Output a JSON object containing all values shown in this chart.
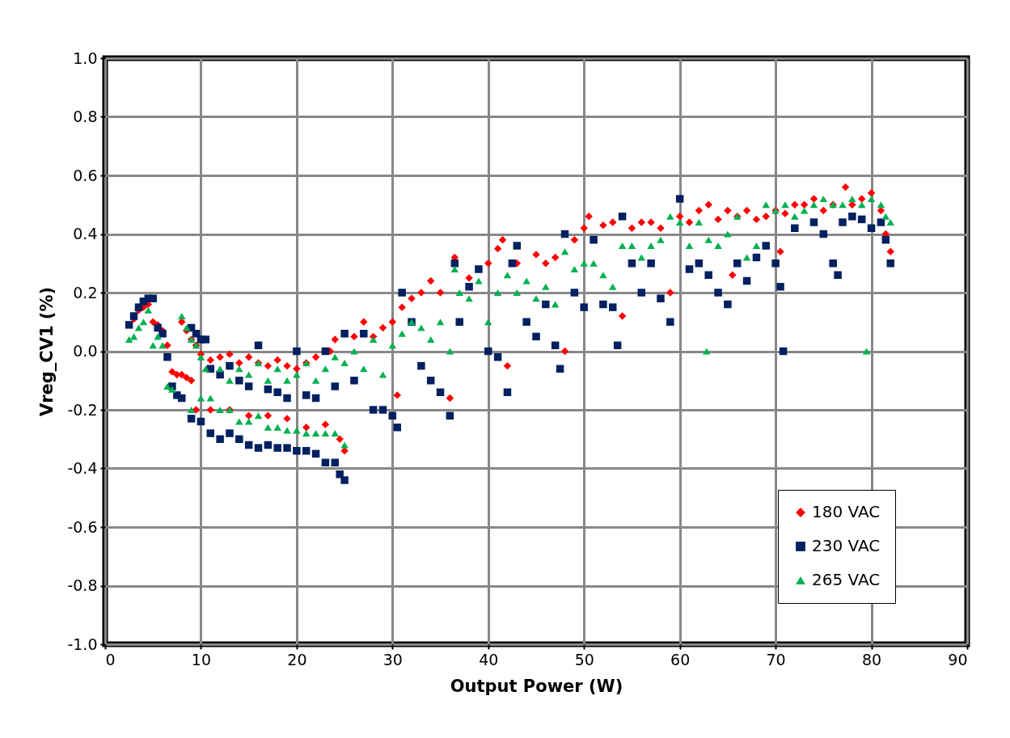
{
  "chart_data": {
    "type": "scatter",
    "xlabel": "Output Power (W)",
    "ylabel": "Vreg_CV1 (%)",
    "xlim": [
      0,
      90
    ],
    "xticks": [
      0,
      10,
      20,
      30,
      40,
      50,
      60,
      70,
      80,
      90
    ],
    "ylim": [
      -1,
      1
    ],
    "yticks": [
      {
        "value": -1,
        "label": "-1.0"
      },
      -0.8,
      -0.6,
      -0.4,
      -0.2,
      {
        "value": 0,
        "label": "0.0"
      },
      0.2,
      0.4,
      0.6,
      0.8,
      {
        "value": 1,
        "label": "1.0"
      }
    ],
    "grid": true,
    "legend": "bottom right",
    "series": [
      {
        "name": "180 VAC",
        "color": "#ff0000",
        "marker": "diamond",
        "x": [
          3,
          3.5,
          4,
          4.5,
          5,
          5.5,
          6,
          6.5,
          7,
          7.5,
          8,
          8.5,
          9,
          8,
          8.5,
          9,
          9.5,
          10,
          11,
          12,
          13,
          14,
          15,
          16,
          17,
          18,
          19,
          20,
          21,
          22,
          23.5,
          24,
          9.5,
          11,
          13,
          15,
          17,
          19,
          21,
          23,
          24.5,
          25,
          26,
          27,
          28,
          29,
          30,
          30.5,
          31,
          32,
          33,
          34,
          35,
          36,
          36.5,
          38,
          40,
          41,
          41.5,
          42,
          43,
          45,
          46,
          47,
          48,
          49,
          50,
          50.5,
          52,
          53,
          54,
          55,
          56,
          57,
          58,
          59,
          60,
          61,
          62,
          63,
          64,
          65,
          65.5,
          66,
          67,
          68,
          69,
          70,
          70.5,
          71,
          72,
          73,
          74,
          75,
          76,
          77.3,
          78,
          79,
          80,
          81,
          81.5,
          82
        ],
        "values": [
          0.11,
          0.14,
          0.15,
          0.16,
          0.1,
          0.09,
          0.07,
          0.02,
          -0.07,
          -0.08,
          -0.08,
          -0.09,
          -0.1,
          0.1,
          0.07,
          0.04,
          0.02,
          -0.01,
          -0.03,
          -0.02,
          -0.01,
          -0.04,
          -0.02,
          -0.04,
          -0.05,
          -0.03,
          -0.05,
          -0.06,
          -0.04,
          -0.02,
          0,
          0.04,
          -0.2,
          -0.2,
          -0.2,
          -0.22,
          -0.22,
          -0.23,
          -0.26,
          -0.25,
          -0.3,
          -0.34,
          0.05,
          0.1,
          0.05,
          0.08,
          0.1,
          -0.15,
          0.15,
          0.18,
          0.2,
          0.24,
          0.2,
          -0.16,
          0.32,
          0.25,
          0.3,
          0.35,
          0.38,
          -0.05,
          0.3,
          0.33,
          0.3,
          0.32,
          0,
          0.38,
          0.42,
          0.46,
          0.43,
          0.44,
          0.12,
          0.42,
          0.44,
          0.44,
          0.42,
          0.2,
          0.46,
          0.44,
          0.48,
          0.5,
          0.45,
          0.48,
          0.26,
          0.46,
          0.48,
          0.45,
          0.46,
          0.48,
          0.34,
          0.47,
          0.5,
          0.5,
          0.52,
          0.48,
          0.5,
          0.56,
          0.5,
          0.52,
          0.54,
          0.48,
          0.4,
          0.34
        ]
      },
      {
        "name": "230 VAC",
        "color": "#002060",
        "marker": "square",
        "x": [
          2.5,
          3,
          3.5,
          4,
          4.5,
          5,
          5.5,
          6,
          6.5,
          7,
          7.5,
          8,
          9,
          9.5,
          10,
          10.5,
          9,
          10,
          11,
          12,
          13,
          14,
          15,
          16,
          17,
          18,
          19,
          20,
          21,
          22,
          23,
          24,
          24.5,
          25,
          11,
          12,
          13,
          14,
          15,
          16,
          17,
          18,
          19,
          20,
          21,
          22,
          23,
          24,
          25,
          26,
          27,
          28,
          29,
          30,
          30.5,
          31,
          32,
          33,
          34,
          35,
          36,
          36.5,
          37,
          38,
          39,
          40,
          41,
          42,
          42.5,
          43,
          44,
          45,
          46,
          47,
          47.5,
          48,
          49,
          50,
          51,
          52,
          53,
          53.5,
          54,
          55,
          56,
          57,
          58,
          59,
          60,
          61,
          62,
          63,
          64,
          65,
          66,
          67,
          68,
          69,
          70,
          70.5,
          70.8,
          72,
          74,
          75,
          76,
          76.5,
          77,
          78,
          79,
          80,
          81,
          81.5,
          82
        ],
        "values": [
          0.09,
          0.12,
          0.15,
          0.17,
          0.18,
          0.18,
          0.08,
          0.06,
          -0.02,
          -0.12,
          -0.15,
          -0.16,
          0.08,
          0.06,
          0.04,
          0.04,
          -0.23,
          -0.24,
          -0.28,
          -0.3,
          -0.28,
          -0.3,
          -0.32,
          -0.33,
          -0.32,
          -0.33,
          -0.33,
          -0.34,
          -0.34,
          -0.35,
          -0.38,
          -0.38,
          -0.42,
          -0.44,
          -0.06,
          -0.08,
          -0.05,
          -0.1,
          -0.12,
          0.02,
          -0.13,
          -0.14,
          -0.16,
          0,
          -0.15,
          -0.16,
          0,
          -0.12,
          0.06,
          -0.1,
          0.06,
          -0.2,
          -0.2,
          -0.22,
          -0.26,
          0.2,
          0.1,
          -0.05,
          -0.1,
          -0.14,
          -0.22,
          0.3,
          0.1,
          0.22,
          0.28,
          0,
          -0.02,
          -0.14,
          0.3,
          0.36,
          0.1,
          0.05,
          0.16,
          0.02,
          -0.06,
          0.4,
          0.2,
          0.15,
          0.38,
          0.16,
          0.15,
          0.02,
          0.46,
          0.3,
          0.2,
          0.3,
          0.18,
          0.1,
          0.52,
          0.28,
          0.3,
          0.26,
          0.2,
          0.16,
          0.3,
          0.24,
          0.32,
          0.36,
          0.3,
          0.22,
          0,
          0.42,
          0.44,
          0.4,
          0.3,
          0.26,
          0.44,
          0.46,
          0.45,
          0.42,
          0.44,
          0.38,
          0.3
        ]
      },
      {
        "name": "265 VAC",
        "color": "#00b050",
        "marker": "triangle",
        "x": [
          2.5,
          3,
          3.5,
          4,
          4.5,
          5,
          5.5,
          6,
          6.5,
          7,
          8,
          8.5,
          9,
          9.5,
          10,
          10.5,
          9,
          10,
          11,
          12,
          13,
          14,
          15,
          16,
          17,
          18,
          19,
          20,
          21,
          22,
          23,
          24,
          25,
          12,
          13,
          14,
          15,
          16,
          17,
          18,
          19,
          20,
          21,
          22,
          23,
          24,
          25,
          26,
          27,
          28,
          29,
          30,
          31,
          32,
          33,
          34,
          35,
          36,
          36.5,
          37,
          38,
          39,
          40,
          41,
          42,
          43,
          44,
          45,
          46,
          47,
          48,
          49,
          50,
          51,
          52,
          53,
          54,
          55,
          56,
          57,
          58,
          59,
          60,
          61,
          62,
          62.8,
          63,
          64,
          65,
          66,
          67,
          68,
          69,
          70,
          71,
          72,
          73,
          74,
          75,
          76,
          77,
          78,
          79,
          79.5,
          80,
          81,
          81.5,
          82
        ],
        "values": [
          0.04,
          0.05,
          0.08,
          0.1,
          0.14,
          0.02,
          0.05,
          0.02,
          -0.12,
          -0.13,
          0.12,
          0.08,
          0.04,
          0.02,
          -0.02,
          -0.06,
          -0.2,
          -0.16,
          -0.16,
          -0.2,
          -0.2,
          -0.24,
          -0.24,
          -0.22,
          -0.26,
          -0.26,
          -0.27,
          -0.27,
          -0.28,
          -0.28,
          -0.28,
          -0.28,
          -0.32,
          -0.06,
          -0.1,
          -0.06,
          -0.08,
          -0.04,
          -0.1,
          -0.06,
          -0.1,
          -0.08,
          -0.04,
          -0.1,
          -0.06,
          -0.02,
          -0.04,
          0,
          -0.06,
          0.04,
          -0.08,
          0.02,
          0.06,
          0.1,
          0.08,
          0.04,
          0.1,
          0,
          0.28,
          0.2,
          0.18,
          0.24,
          0.1,
          0.2,
          0.26,
          0.2,
          0.24,
          0.18,
          0.22,
          0.16,
          0.34,
          0.28,
          0.3,
          0.3,
          0.26,
          0.22,
          0.36,
          0.36,
          0.32,
          0.36,
          0.38,
          0.46,
          0.44,
          0.36,
          0.44,
          0,
          0.38,
          0.36,
          0.4,
          0.46,
          0.32,
          0.36,
          0.5,
          0.48,
          0.5,
          0.46,
          0.48,
          0.5,
          0.52,
          0.5,
          0.5,
          0.52,
          0.5,
          0,
          0.52,
          0.5,
          0.46,
          0.44
        ]
      }
    ]
  }
}
